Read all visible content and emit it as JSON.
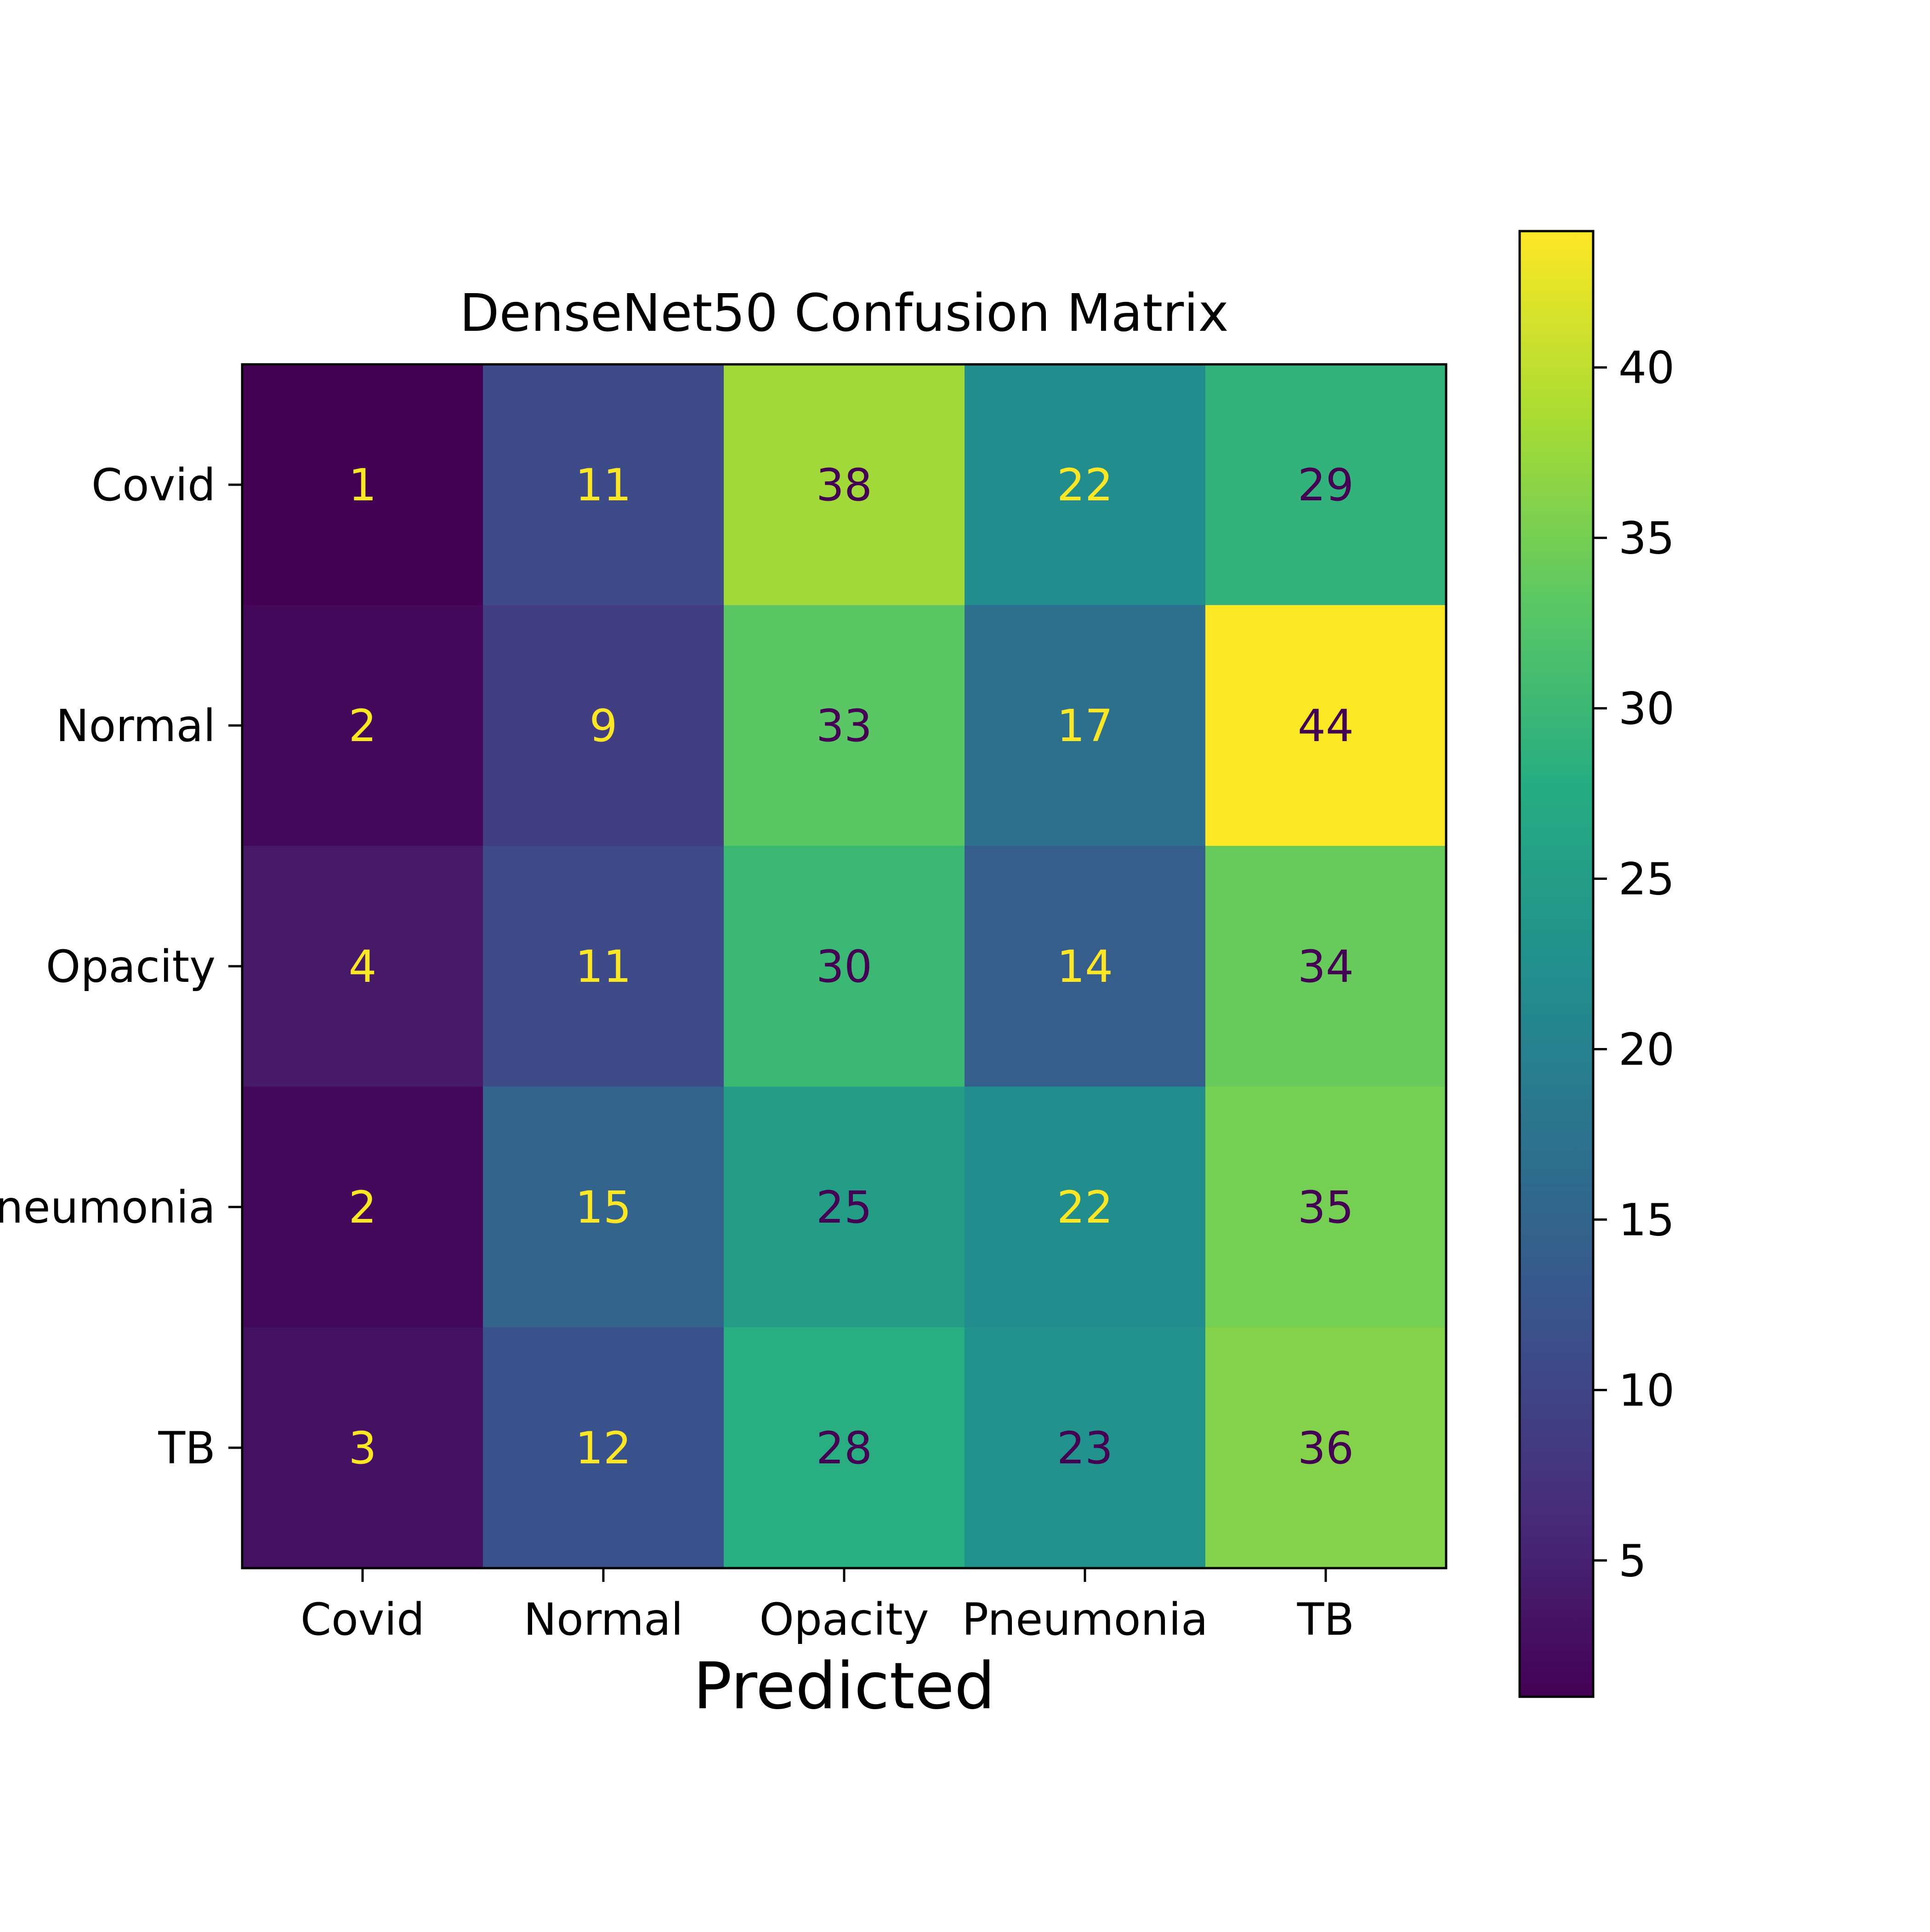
{
  "chart_data": {
    "type": "heatmap",
    "title": "DenseNet50 Confusion Matrix",
    "xlabel": "Predicted",
    "ylabel": "",
    "x_categories": [
      "Covid",
      "Normal",
      "Opacity",
      "Pneumonia",
      "TB"
    ],
    "y_categories": [
      "Covid",
      "Normal",
      "Opacity",
      "Pneumonia",
      "TB"
    ],
    "y_tick_labels": [
      "Covid",
      "Normal",
      "Opacity",
      "neumonia",
      "TB"
    ],
    "values": [
      [
        1,
        11,
        38,
        22,
        29
      ],
      [
        2,
        9,
        33,
        17,
        44
      ],
      [
        4,
        11,
        30,
        14,
        34
      ],
      [
        2,
        15,
        25,
        22,
        35
      ],
      [
        3,
        12,
        28,
        23,
        36
      ]
    ],
    "colormap": "viridis",
    "color_range": [
      1,
      44
    ],
    "colorbar_ticks": [
      5,
      10,
      15,
      20,
      25,
      30,
      35,
      40
    ],
    "annotation_colors": {
      "light": "#fde725",
      "dark": "#440154"
    },
    "grid": false
  }
}
